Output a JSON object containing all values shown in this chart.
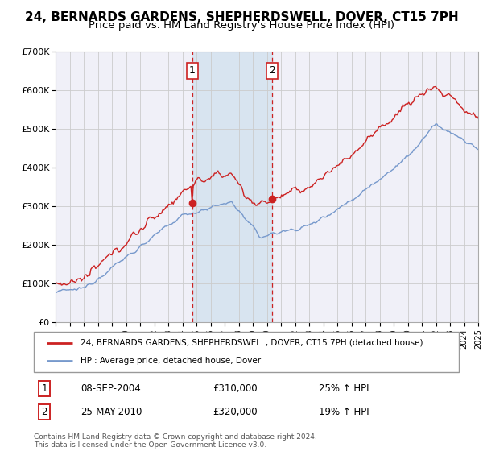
{
  "title": "24, BERNARDS GARDENS, SHEPHERDSWELL, DOVER, CT15 7PH",
  "subtitle": "Price paid vs. HM Land Registry's House Price Index (HPI)",
  "legend_line1": "24, BERNARDS GARDENS, SHEPHERDSWELL, DOVER, CT15 7PH (detached house)",
  "legend_line2": "HPI: Average price, detached house, Dover",
  "sale1_date": "08-SEP-2004",
  "sale1_price": 310000,
  "sale1_hpi": "25% ↑ HPI",
  "sale1_x": 2004.69,
  "sale1_y": 310000,
  "sale2_date": "25-MAY-2010",
  "sale2_price": 320000,
  "sale2_hpi": "19% ↑ HPI",
  "sale2_x": 2010.39,
  "sale2_y": 320000,
  "red_color": "#cc2222",
  "blue_color": "#7799cc",
  "vline_color": "#cc2222",
  "grid_color": "#cccccc",
  "background_color": "#ffffff",
  "plot_bg_color": "#f0f0f8",
  "highlight_bg_color": "#d8e4f0",
  "ylim": [
    0,
    700000
  ],
  "xlim_start": 1995,
  "xlim_end": 2025,
  "footer": "Contains HM Land Registry data © Crown copyright and database right 2024.\nThis data is licensed under the Open Government Licence v3.0.",
  "title_fontsize": 11,
  "subtitle_fontsize": 9.5
}
